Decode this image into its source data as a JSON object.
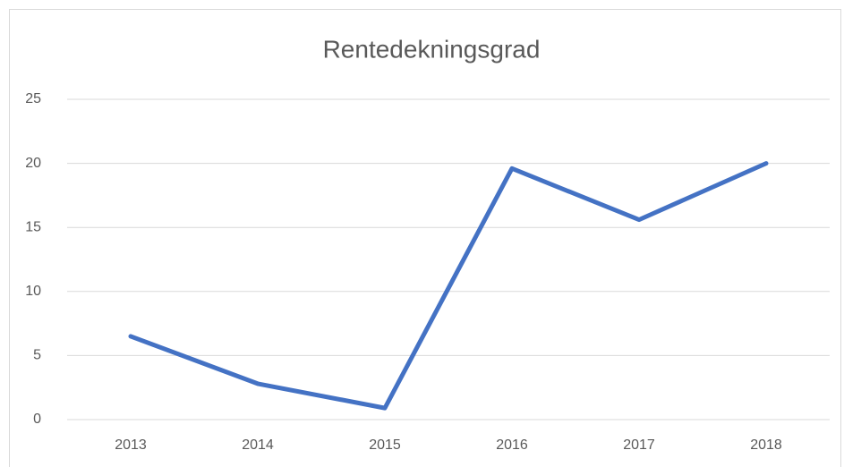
{
  "chart_data": {
    "type": "line",
    "title": "Rentedekningsgrad",
    "categories": [
      "2013",
      "2014",
      "2015",
      "2016",
      "2017",
      "2018"
    ],
    "values": [
      6.5,
      2.8,
      0.9,
      19.6,
      15.6,
      20.0
    ],
    "color": "#4472c4",
    "ylim": [
      0,
      25
    ],
    "yticks": [
      0,
      5,
      10,
      15,
      20,
      25
    ],
    "grid": true
  }
}
